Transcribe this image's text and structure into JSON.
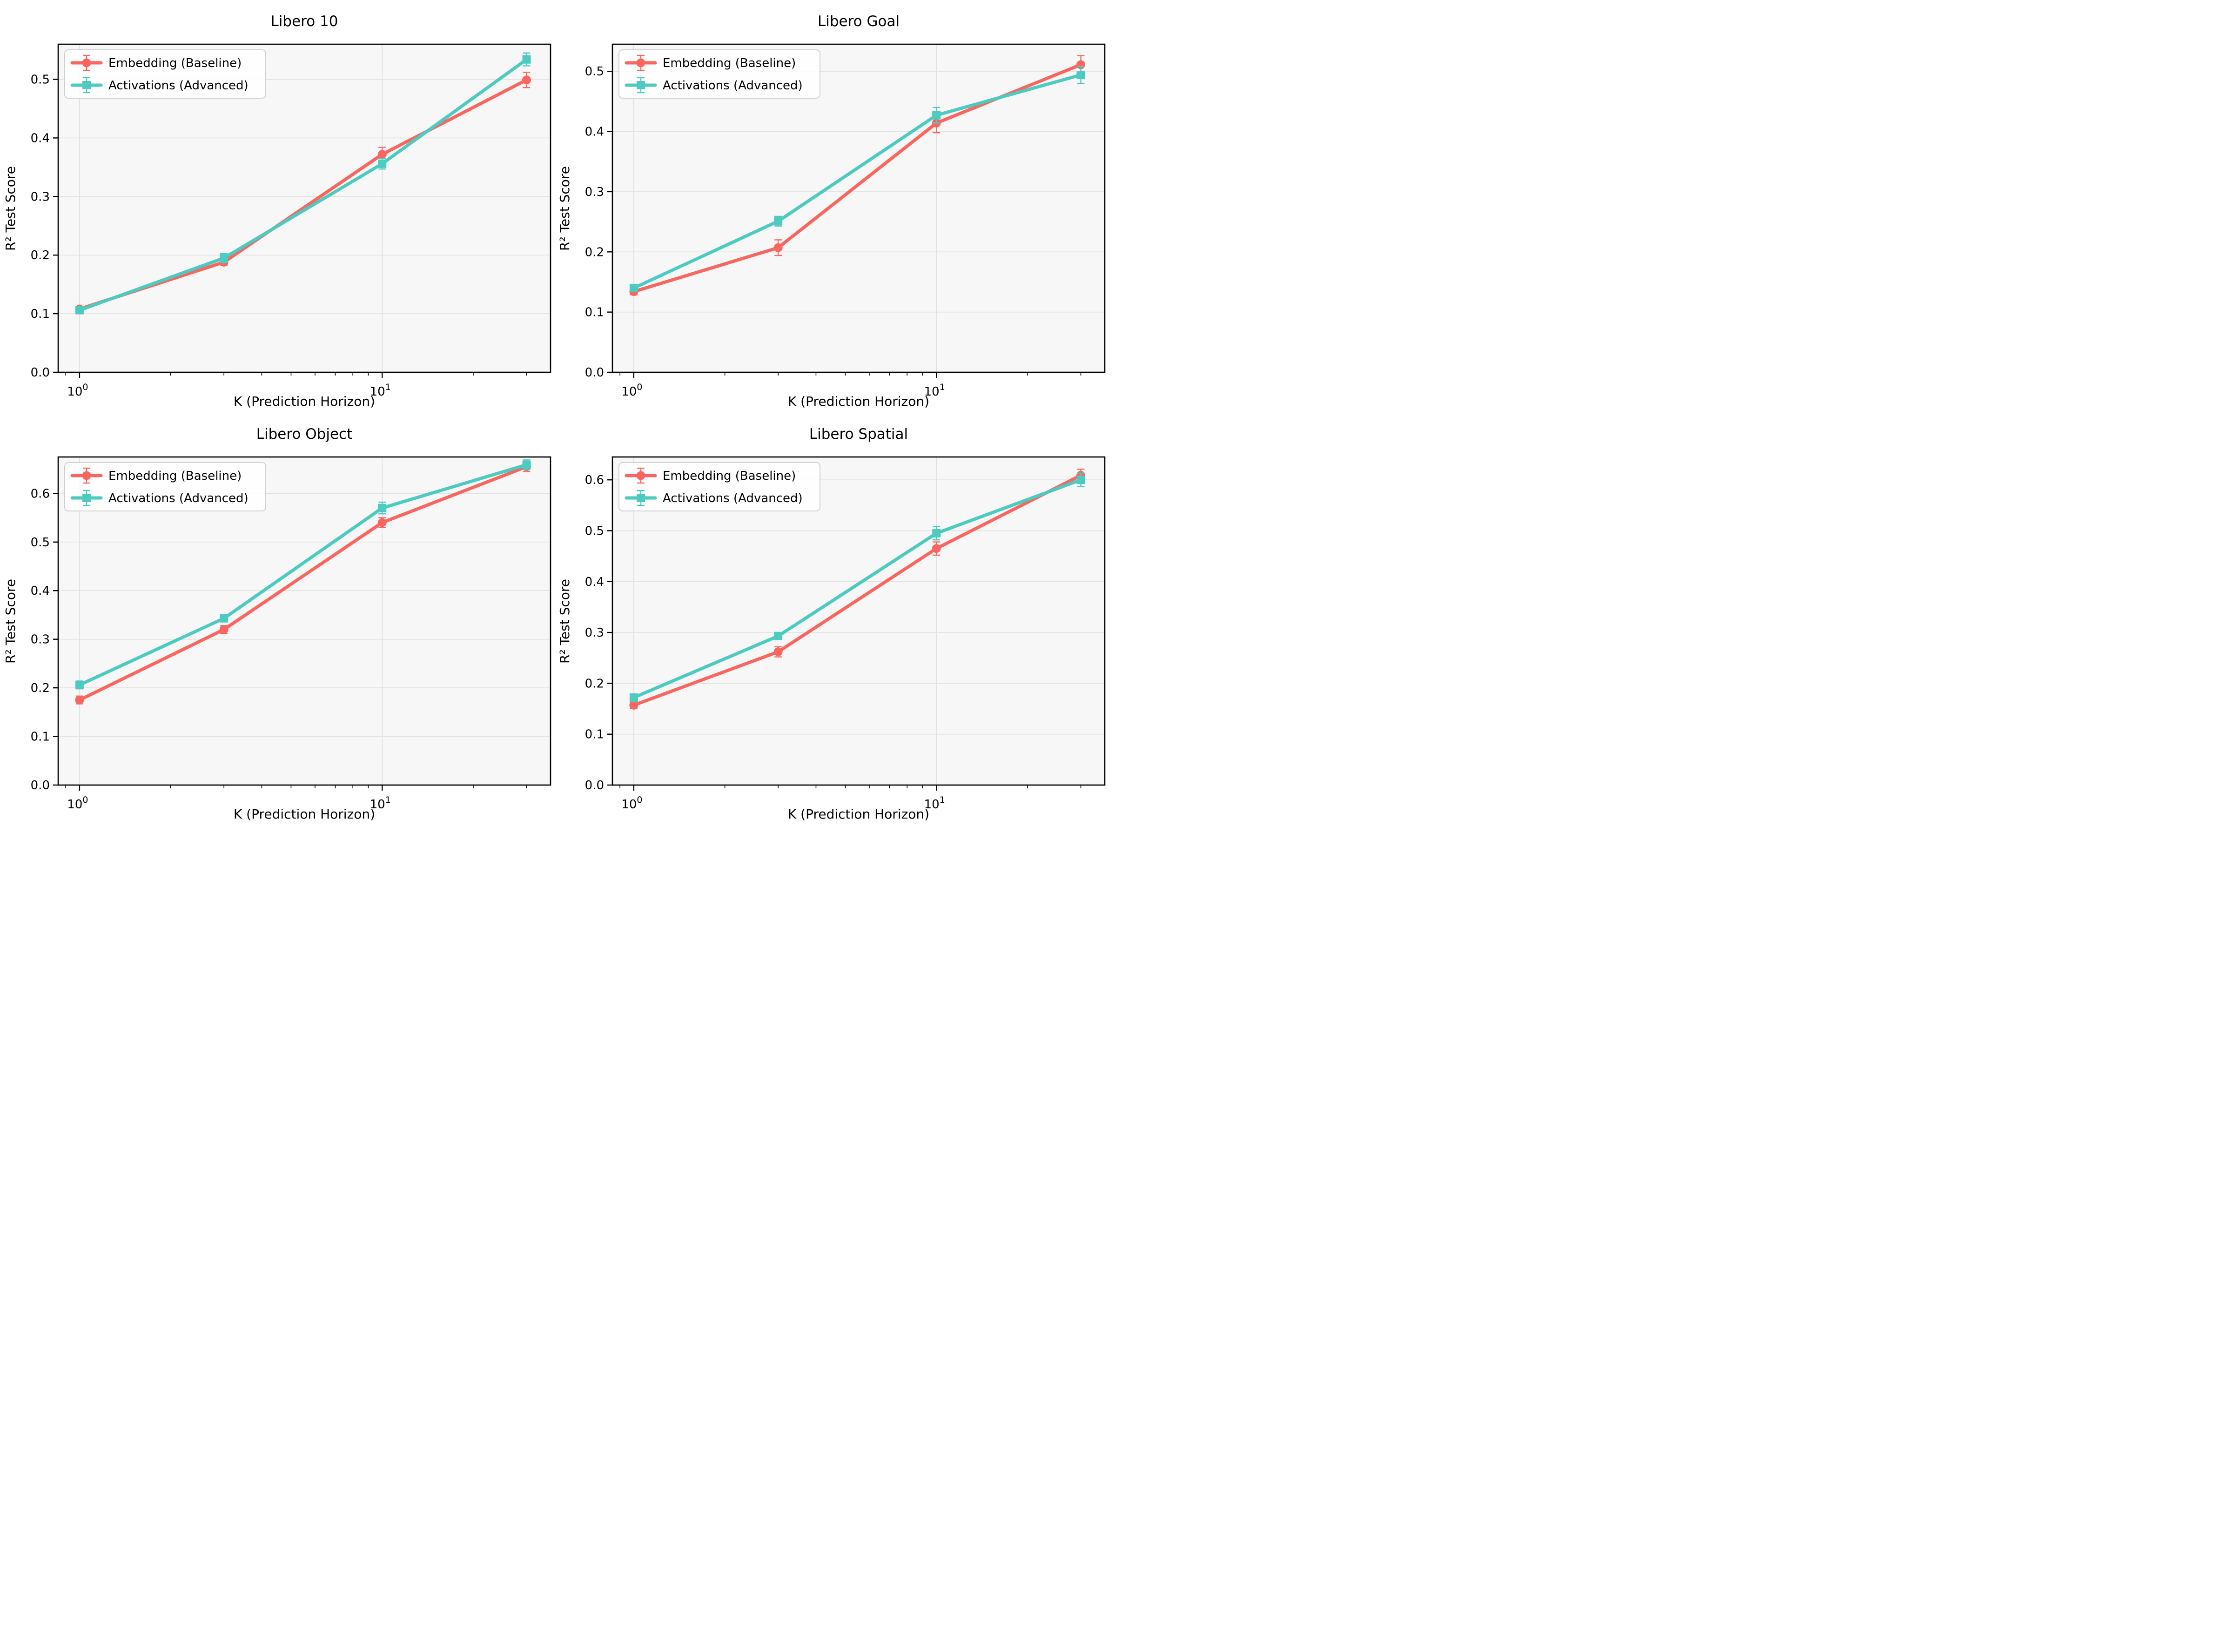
{
  "figure": {
    "background": "#ffffff",
    "axes_background": "#f7f7f7",
    "grid_color": "#e1e1e1",
    "spine_color": "#000000",
    "tick_color": "#000000",
    "text_color": "#000000",
    "x_axis": {
      "scale": "log",
      "major_ticks": [
        {
          "value": 1,
          "base": "10",
          "exponent": "0"
        },
        {
          "value": 10,
          "base": "10",
          "exponent": "1"
        }
      ],
      "minor_ticks": [
        0.9,
        2,
        3,
        4,
        5,
        6,
        7,
        8,
        9,
        20,
        30
      ]
    },
    "legend": {
      "position": "upper left",
      "labels": [
        "Embedding (Baseline)",
        "Activations (Advanced)"
      ]
    }
  },
  "series_meta": [
    {
      "name": "Embedding (Baseline)",
      "color": "#f9665f",
      "marker": "circle"
    },
    {
      "name": "Activations (Advanced)",
      "color": "#4dcbc0",
      "marker": "square"
    }
  ],
  "chart_data": [
    {
      "type": "line",
      "title": "Libero 10",
      "xlabel": "K (Prediction Horizon)",
      "ylabel": "R² Test Score",
      "xscale": "log",
      "x": [
        1,
        3,
        10,
        30
      ],
      "xlim": [
        0.85,
        36
      ],
      "ylim": [
        0,
        0.56
      ],
      "yticks": [
        0.0,
        0.1,
        0.2,
        0.3,
        0.4,
        0.5
      ],
      "grid": true,
      "legend_position": "upper left",
      "series": [
        {
          "name": "Embedding (Baseline)",
          "values": [
            0.108,
            0.188,
            0.372,
            0.499
          ],
          "errors": [
            0.004,
            0.005,
            0.012,
            0.013
          ]
        },
        {
          "name": "Activations (Advanced)",
          "values": [
            0.106,
            0.195,
            0.356,
            0.534
          ],
          "errors": [
            0.004,
            0.008,
            0.009,
            0.011
          ]
        }
      ]
    },
    {
      "type": "line",
      "title": "Libero Goal",
      "xlabel": "K (Prediction Horizon)",
      "ylabel": "R² Test Score",
      "xscale": "log",
      "x": [
        1,
        3,
        10,
        30
      ],
      "xlim": [
        0.85,
        36
      ],
      "ylim": [
        0,
        0.545
      ],
      "yticks": [
        0.0,
        0.1,
        0.2,
        0.3,
        0.4,
        0.5
      ],
      "grid": true,
      "legend_position": "upper left",
      "series": [
        {
          "name": "Embedding (Baseline)",
          "values": [
            0.134,
            0.207,
            0.414,
            0.511
          ],
          "errors": [
            0.005,
            0.013,
            0.016,
            0.015
          ]
        },
        {
          "name": "Activations (Advanced)",
          "values": [
            0.14,
            0.251,
            0.427,
            0.494
          ],
          "errors": [
            0.005,
            0.008,
            0.013,
            0.014
          ]
        }
      ]
    },
    {
      "type": "line",
      "title": "Libero Object",
      "xlabel": "K (Prediction Horizon)",
      "ylabel": "R² Test Score",
      "xscale": "log",
      "x": [
        1,
        3,
        10,
        30
      ],
      "xlim": [
        0.85,
        36
      ],
      "ylim": [
        0,
        0.675
      ],
      "yticks": [
        0.0,
        0.1,
        0.2,
        0.3,
        0.4,
        0.5,
        0.6
      ],
      "grid": true,
      "legend_position": "upper left",
      "series": [
        {
          "name": "Embedding (Baseline)",
          "values": [
            0.175,
            0.32,
            0.54,
            0.655
          ],
          "errors": [
            0.008,
            0.008,
            0.01,
            0.01
          ]
        },
        {
          "name": "Activations (Advanced)",
          "values": [
            0.206,
            0.343,
            0.57,
            0.659
          ],
          "errors": [
            0.008,
            0.006,
            0.012,
            0.01
          ]
        }
      ]
    },
    {
      "type": "line",
      "title": "Libero Spatial",
      "xlabel": "K (Prediction Horizon)",
      "ylabel": "R² Test Score",
      "xscale": "log",
      "x": [
        1,
        3,
        10,
        30
      ],
      "xlim": [
        0.85,
        36
      ],
      "ylim": [
        0,
        0.645
      ],
      "yticks": [
        0.0,
        0.1,
        0.2,
        0.3,
        0.4,
        0.5,
        0.6
      ],
      "grid": true,
      "legend_position": "upper left",
      "series": [
        {
          "name": "Embedding (Baseline)",
          "values": [
            0.157,
            0.262,
            0.465,
            0.609
          ],
          "errors": [
            0.006,
            0.01,
            0.013,
            0.012
          ]
        },
        {
          "name": "Activations (Advanced)",
          "values": [
            0.172,
            0.293,
            0.495,
            0.6
          ],
          "errors": [
            0.006,
            0.006,
            0.013,
            0.013
          ]
        }
      ]
    }
  ]
}
